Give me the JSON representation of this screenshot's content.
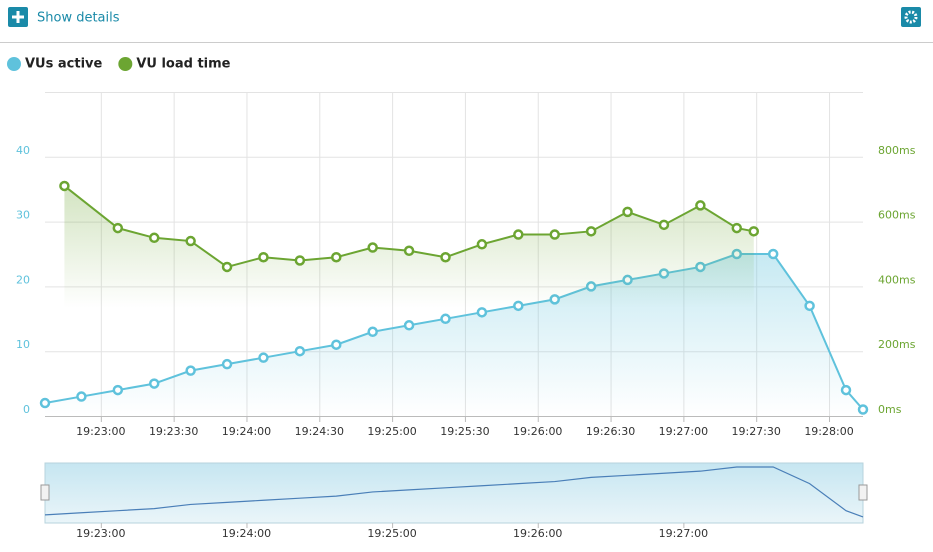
{
  "header": {
    "button": "Show details"
  },
  "chart_data": {
    "type": "line",
    "xlim": [
      "19:22:37",
      "19:28:14"
    ],
    "xticks": [
      "19:23:00",
      "19:23:30",
      "19:24:00",
      "19:24:30",
      "19:25:00",
      "19:25:30",
      "19:26:00",
      "19:26:30",
      "19:27:00",
      "19:27:30",
      "19:28:00"
    ],
    "ylim": [
      0,
      50
    ],
    "yticks": [
      0,
      10,
      20,
      30,
      40
    ],
    "y2lim": [
      0,
      1000
    ],
    "y2ticks": [
      {
        "value": 0,
        "label": "0ms"
      },
      {
        "value": 200,
        "label": "200ms"
      },
      {
        "value": 400,
        "label": "400ms"
      },
      {
        "value": 600,
        "label": "600ms"
      },
      {
        "value": 800,
        "label": "800ms"
      }
    ],
    "grid": true,
    "legend": "top-left",
    "series": [
      {
        "name": "VUs active",
        "color": "#5fc2dc",
        "x": [
          "19:22:37",
          "19:22:52",
          "19:23:07",
          "19:23:22",
          "19:23:37",
          "19:23:52",
          "19:24:07",
          "19:24:22",
          "19:24:37",
          "19:24:52",
          "19:25:07",
          "19:25:22",
          "19:25:37",
          "19:25:52",
          "19:26:07",
          "19:26:22",
          "19:26:37",
          "19:26:52",
          "19:27:07",
          "19:27:22",
          "19:27:37",
          "19:27:52",
          "19:28:07",
          "19:28:14"
        ],
        "values": [
          2,
          3,
          4,
          5,
          7,
          8,
          9,
          10,
          11,
          13,
          14,
          15,
          16,
          17,
          18,
          20,
          21,
          22,
          23,
          25,
          25,
          17,
          4,
          1
        ]
      },
      {
        "name": "VU load time",
        "color": "#6ca532",
        "axis": "y2",
        "x": [
          "19:22:45",
          "19:23:07",
          "19:23:22",
          "19:23:37",
          "19:23:52",
          "19:24:07",
          "19:24:22",
          "19:24:37",
          "19:24:52",
          "19:25:07",
          "19:25:22",
          "19:25:37",
          "19:25:52",
          "19:26:07",
          "19:26:22",
          "19:26:37",
          "19:26:52",
          "19:27:07",
          "19:27:22",
          "19:27:29"
        ],
        "values": [
          710,
          580,
          550,
          540,
          460,
          490,
          480,
          490,
          520,
          510,
          490,
          530,
          560,
          560,
          570,
          630,
          590,
          650,
          580,
          570
        ]
      }
    ],
    "navigator": {
      "xticks": [
        "19:23:00",
        "19:24:00",
        "19:25:00",
        "19:26:00",
        "19:27:00"
      ]
    }
  }
}
